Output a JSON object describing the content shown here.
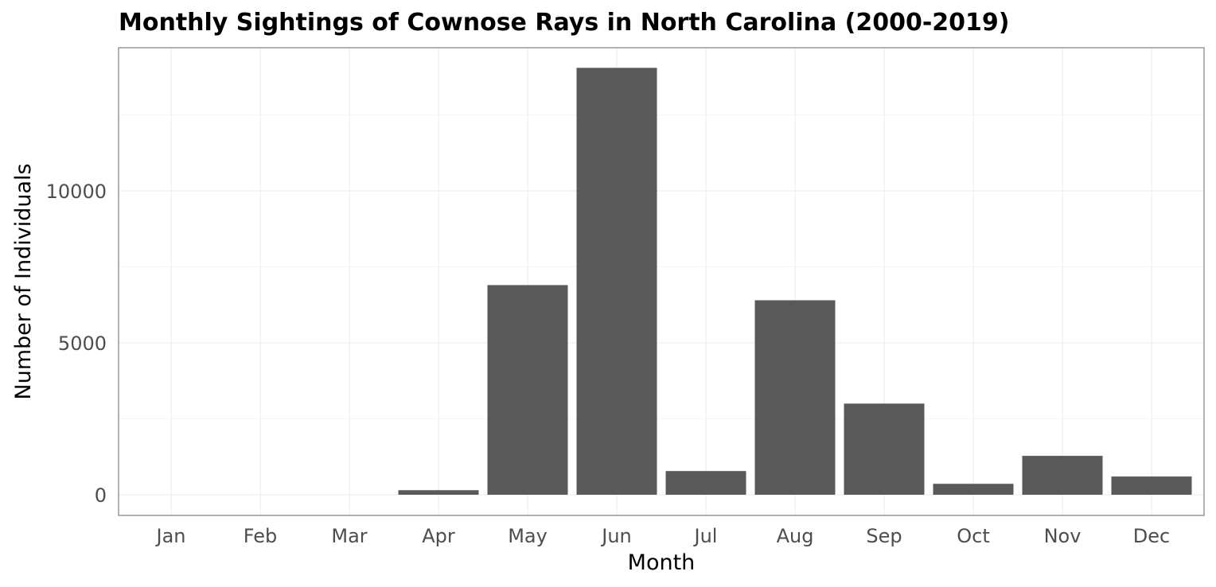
{
  "chart_data": {
    "type": "bar",
    "title": "Monthly Sightings of Cownose Rays in North Carolina (2000-2019)",
    "xlabel": "Month",
    "ylabel": "Number of Individuals",
    "categories": [
      "Jan",
      "Feb",
      "Mar",
      "Apr",
      "May",
      "Jun",
      "Jul",
      "Aug",
      "Sep",
      "Oct",
      "Nov",
      "Dec"
    ],
    "values": [
      0,
      0,
      0,
      150,
      6900,
      14050,
      780,
      6400,
      3000,
      360,
      1280,
      600
    ],
    "y_ticks": [
      0,
      5000,
      10000
    ],
    "y_tick_labels": [
      "0",
      "5000",
      "10000"
    ],
    "ylim": [
      -700,
      14750
    ],
    "grid": true,
    "legend": "none",
    "colors": {
      "bar": "#595959",
      "grid": "#ebebeb",
      "border": "#7f7f7f",
      "tick_text": "#4d4d4d"
    }
  }
}
